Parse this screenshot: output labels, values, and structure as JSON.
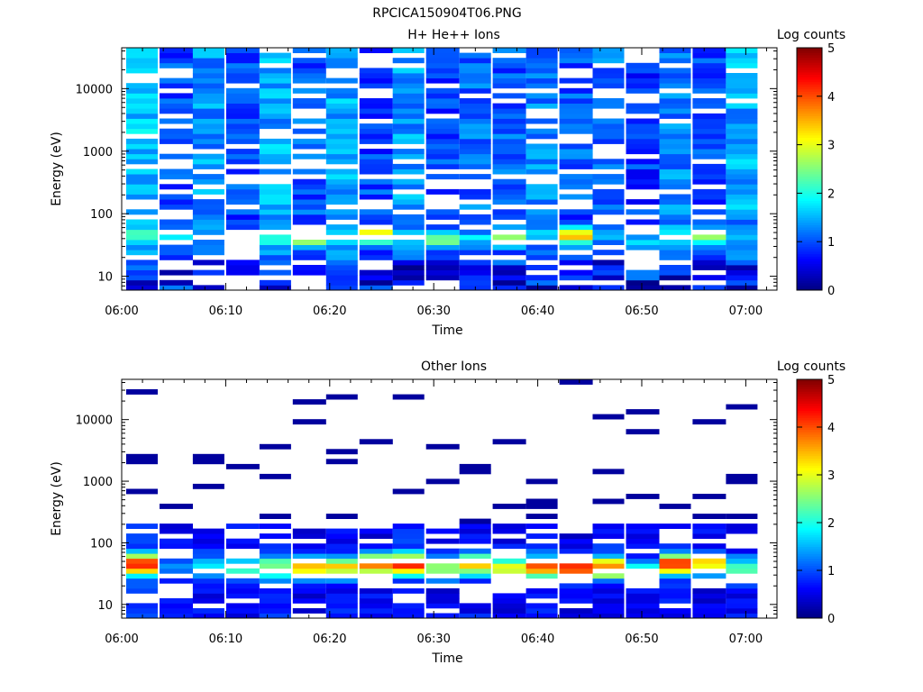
{
  "figure_title": "RPCICA150904T06.PNG",
  "chart_data": [
    {
      "type": "heatmap",
      "title": "H+ He++ Ions",
      "xlabel": "Time",
      "ylabel": "Energy (eV)",
      "y_scale": "log",
      "ylim": [
        6,
        45000
      ],
      "xlim": [
        "06:00",
        "07:03"
      ],
      "x_ticks": [
        "06:00",
        "06:10",
        "06:20",
        "06:30",
        "06:40",
        "06:50",
        "07:00"
      ],
      "y_ticks": [
        "10",
        "100",
        "1000",
        "10000"
      ],
      "colorbar": {
        "label": "Log counts",
        "range": [
          0,
          5
        ],
        "ticks": [
          "0",
          "1",
          "2",
          "3",
          "4",
          "5"
        ],
        "colormap": "jet"
      },
      "time_columns": 19,
      "energy_channels": 48,
      "column_profiles": [
        {
          "base": 1.45,
          "peak": 2.2,
          "peak_energy": 45,
          "fill": 0.86
        },
        {
          "base": 0.85,
          "peak": 1.8,
          "peak_energy": 40,
          "fill": 0.72
        },
        {
          "base": 1.2,
          "peak": 1.6,
          "peak_energy": 45,
          "fill": 0.84
        },
        {
          "base": 0.8,
          "peak": 1.5,
          "peak_energy": 40,
          "fill": 0.7
        },
        {
          "base": 1.3,
          "peak": 2.0,
          "peak_energy": 40,
          "fill": 0.8
        },
        {
          "base": 0.9,
          "peak": 3.0,
          "peak_energy": 40,
          "fill": 0.72
        },
        {
          "base": 1.3,
          "peak": 1.8,
          "peak_energy": 40,
          "fill": 0.82
        },
        {
          "base": 0.8,
          "peak": 3.2,
          "peak_energy": 45,
          "fill": 0.7
        },
        {
          "base": 1.2,
          "peak": 2.0,
          "peak_energy": 40,
          "fill": 0.8
        },
        {
          "base": 0.8,
          "peak": 2.5,
          "peak_energy": 40,
          "fill": 0.72
        },
        {
          "base": 1.0,
          "peak": 1.7,
          "peak_energy": 40,
          "fill": 0.8
        },
        {
          "base": 0.9,
          "peak": 2.8,
          "peak_energy": 40,
          "fill": 0.74
        },
        {
          "base": 1.1,
          "peak": 1.8,
          "peak_energy": 45,
          "fill": 0.8
        },
        {
          "base": 0.9,
          "peak": 3.4,
          "peak_energy": 45,
          "fill": 0.74
        },
        {
          "base": 1.0,
          "peak": 1.6,
          "peak_energy": 45,
          "fill": 0.78
        },
        {
          "base": 0.7,
          "peak": 1.8,
          "peak_energy": 35,
          "fill": 0.7
        },
        {
          "base": 1.1,
          "peak": 2.1,
          "peak_energy": 45,
          "fill": 0.8
        },
        {
          "base": 0.8,
          "peak": 2.8,
          "peak_energy": 45,
          "fill": 0.72
        },
        {
          "base": 1.3,
          "peak": 1.5,
          "peak_energy": 40,
          "fill": 0.86
        }
      ]
    },
    {
      "type": "heatmap",
      "title": "Other Ions",
      "xlabel": "Time",
      "ylabel": "Energy (eV)",
      "y_scale": "log",
      "ylim": [
        6,
        45000
      ],
      "xlim": [
        "06:00",
        "07:03"
      ],
      "x_ticks": [
        "06:00",
        "06:10",
        "06:20",
        "06:30",
        "06:40",
        "06:50",
        "07:00"
      ],
      "y_ticks": [
        "10",
        "100",
        "1000",
        "10000"
      ],
      "colorbar": {
        "label": "Log counts",
        "range": [
          0,
          5
        ],
        "ticks": [
          "0",
          "1",
          "2",
          "3",
          "4",
          "5"
        ],
        "colormap": "jet"
      },
      "time_columns": 19,
      "energy_channels": 48,
      "sparse_high_energy": true,
      "column_profiles": [
        {
          "base": 0.6,
          "peak": 4.0,
          "peak_energy": 45,
          "fill": 0.9
        },
        {
          "base": 0.3,
          "peak": 1.2,
          "peak_energy": 40,
          "fill": 0.6
        },
        {
          "base": 0.4,
          "peak": 1.8,
          "peak_energy": 40,
          "fill": 0.75
        },
        {
          "base": 0.3,
          "peak": 1.9,
          "peak_energy": 40,
          "fill": 0.6
        },
        {
          "base": 0.5,
          "peak": 2.4,
          "peak_energy": 40,
          "fill": 0.75
        },
        {
          "base": 0.3,
          "peak": 3.3,
          "peak_energy": 40,
          "fill": 0.6
        },
        {
          "base": 0.4,
          "peak": 3.0,
          "peak_energy": 40,
          "fill": 0.75
        },
        {
          "base": 0.3,
          "peak": 3.6,
          "peak_energy": 45,
          "fill": 0.6
        },
        {
          "base": 0.5,
          "peak": 4.2,
          "peak_energy": 45,
          "fill": 0.78
        },
        {
          "base": 0.3,
          "peak": 2.6,
          "peak_energy": 40,
          "fill": 0.6
        },
        {
          "base": 0.4,
          "peak": 3.2,
          "peak_energy": 45,
          "fill": 0.75
        },
        {
          "base": 0.3,
          "peak": 2.8,
          "peak_energy": 40,
          "fill": 0.6
        },
        {
          "base": 0.4,
          "peak": 3.6,
          "peak_energy": 40,
          "fill": 0.75
        },
        {
          "base": 0.3,
          "peak": 3.8,
          "peak_energy": 40,
          "fill": 0.6
        },
        {
          "base": 0.4,
          "peak": 3.7,
          "peak_energy": 40,
          "fill": 0.75
        },
        {
          "base": 0.3,
          "peak": 1.8,
          "peak_energy": 35,
          "fill": 0.55
        },
        {
          "base": 0.4,
          "peak": 4.1,
          "peak_energy": 45,
          "fill": 0.78
        },
        {
          "base": 0.3,
          "peak": 3.1,
          "peak_energy": 45,
          "fill": 0.6
        },
        {
          "base": 0.4,
          "peak": 2.0,
          "peak_energy": 40,
          "fill": 0.75
        }
      ]
    }
  ]
}
